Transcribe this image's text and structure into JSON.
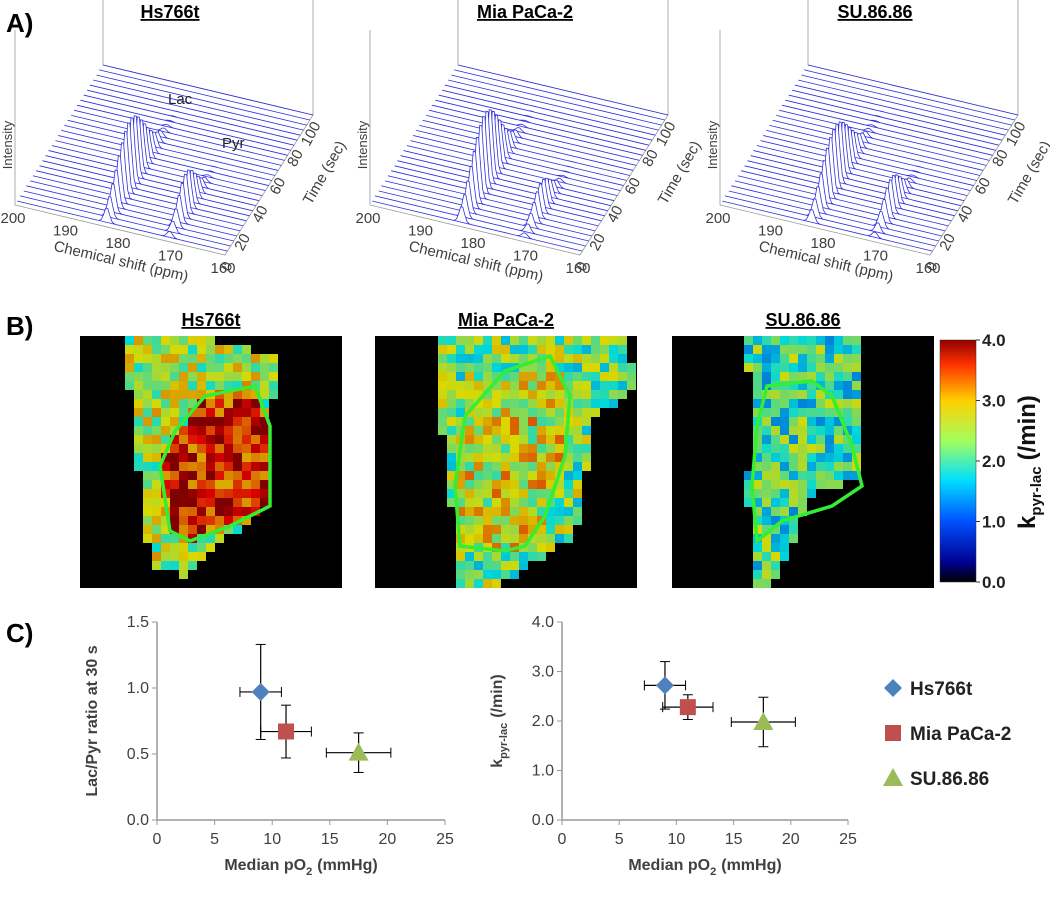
{
  "panel_labels": [
    "A)",
    "B)",
    "C)"
  ],
  "spectra": {
    "titles": [
      "Hs766t",
      "Mia PaCa-2",
      "SU.86.86"
    ],
    "xlabel": "Chemical shift (ppm)",
    "ylabel": "Time (sec)",
    "zlabel": "Intensity",
    "xlim": [
      200,
      160
    ],
    "xticks": [
      200,
      190,
      180,
      170,
      160
    ],
    "ylim": [
      0,
      100
    ],
    "yticks": [
      0,
      20,
      40,
      60,
      80,
      100
    ],
    "annotations": [
      "Lac",
      "Pyr"
    ]
  },
  "maps": {
    "titles": [
      "Hs766t",
      "Mia PaCa-2",
      "SU.86.86"
    ],
    "colorbar": {
      "label": "k",
      "label_sub": "pyr-lac",
      "label_unit": "(/min)",
      "lim": [
        0,
        4
      ],
      "ticks": [
        {
          "value": 0,
          "label": "0.0"
        },
        {
          "value": 1,
          "label": "1.0"
        },
        {
          "value": 2,
          "label": "2.0"
        },
        {
          "value": 3,
          "label": "3.0"
        },
        {
          "value": 4,
          "label": "4.0"
        }
      ]
    }
  },
  "chart_data": [
    {
      "type": "scatter",
      "ylabel": "Lac/Pyr ratio at 30 s",
      "xlabel": "Median pO",
      "xlabel_sub": "2",
      "xlabel_unit": "(mmHg)",
      "xlim": [
        0,
        25
      ],
      "xticks": [
        0,
        5,
        10,
        15,
        20,
        25
      ],
      "ylim": [
        0,
        1.5
      ],
      "yticks": [
        {
          "value": 0,
          "label": "0.0"
        },
        {
          "value": 0.5,
          "label": "0.5"
        },
        {
          "value": 1,
          "label": "1.0"
        },
        {
          "value": 1.5,
          "label": "1.5"
        }
      ],
      "legend": "right",
      "series": [
        {
          "name": "Hs766t",
          "color": "#4f81bd",
          "marker": "diamond",
          "x": [
            9
          ],
          "values": [
            0.97
          ],
          "xerr": [
            1.8
          ],
          "yerr": [
            0.36
          ]
        },
        {
          "name": "Mia PaCa-2",
          "color": "#c0504d",
          "marker": "square",
          "x": [
            11.2
          ],
          "values": [
            0.67
          ],
          "xerr": [
            2.2
          ],
          "yerr": [
            0.2
          ]
        },
        {
          "name": "SU.86.86",
          "color": "#9bbb59",
          "marker": "triangle",
          "x": [
            17.5
          ],
          "values": [
            0.51
          ],
          "xerr": [
            2.8
          ],
          "yerr": [
            0.15
          ]
        }
      ]
    },
    {
      "type": "scatter",
      "ylabel": "k",
      "ylabel_sub": "pyr-lac",
      "ylabel_unit": "(/min)",
      "xlabel": "Median pO",
      "xlabel_sub": "2",
      "xlabel_unit": "(mmHg)",
      "xlim": [
        0,
        25
      ],
      "xticks": [
        0,
        5,
        10,
        15,
        20,
        25
      ],
      "ylim": [
        0,
        4
      ],
      "yticks": [
        {
          "value": 0,
          "label": "0.0"
        },
        {
          "value": 1,
          "label": "1.0"
        },
        {
          "value": 2,
          "label": "2.0"
        },
        {
          "value": 3,
          "label": "3.0"
        },
        {
          "value": 4,
          "label": "4.0"
        }
      ],
      "series": [
        {
          "color": "#4f81bd",
          "marker": "diamond",
          "x": [
            9
          ],
          "values": [
            2.72
          ],
          "xerr": [
            1.8
          ],
          "yerr": [
            0.48
          ]
        },
        {
          "color": "#c0504d",
          "marker": "square",
          "x": [
            11
          ],
          "values": [
            2.28
          ],
          "xerr": [
            2.2
          ],
          "yerr": [
            0.25
          ]
        },
        {
          "color": "#9bbb59",
          "marker": "triangle",
          "x": [
            17.6
          ],
          "values": [
            1.98
          ],
          "xerr": [
            2.8
          ],
          "yerr": [
            0.5
          ]
        }
      ]
    }
  ]
}
